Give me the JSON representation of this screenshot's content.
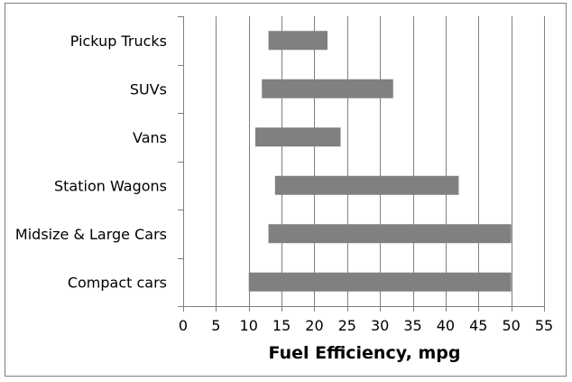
{
  "chart_data": {
    "type": "bar",
    "subtype": "floating-range-horizontal",
    "title": "",
    "xlabel": "Fuel Efficiency,  mpg",
    "ylabel": "",
    "xlim": [
      0,
      55
    ],
    "x_ticks": [
      0,
      5,
      10,
      15,
      20,
      25,
      30,
      35,
      40,
      45,
      50,
      55
    ],
    "grid": "vertical",
    "legend": "none",
    "bar_color": "#808080",
    "categories": [
      "Pickup Trucks",
      "SUVs",
      "Vans",
      "Station Wagons",
      "Midsize & Large Cars",
      "Compact cars"
    ],
    "series": [
      {
        "name": "min",
        "values": [
          13,
          12,
          11,
          14,
          13,
          10
        ]
      },
      {
        "name": "max",
        "values": [
          22,
          32,
          24,
          42,
          50,
          50
        ]
      }
    ]
  }
}
